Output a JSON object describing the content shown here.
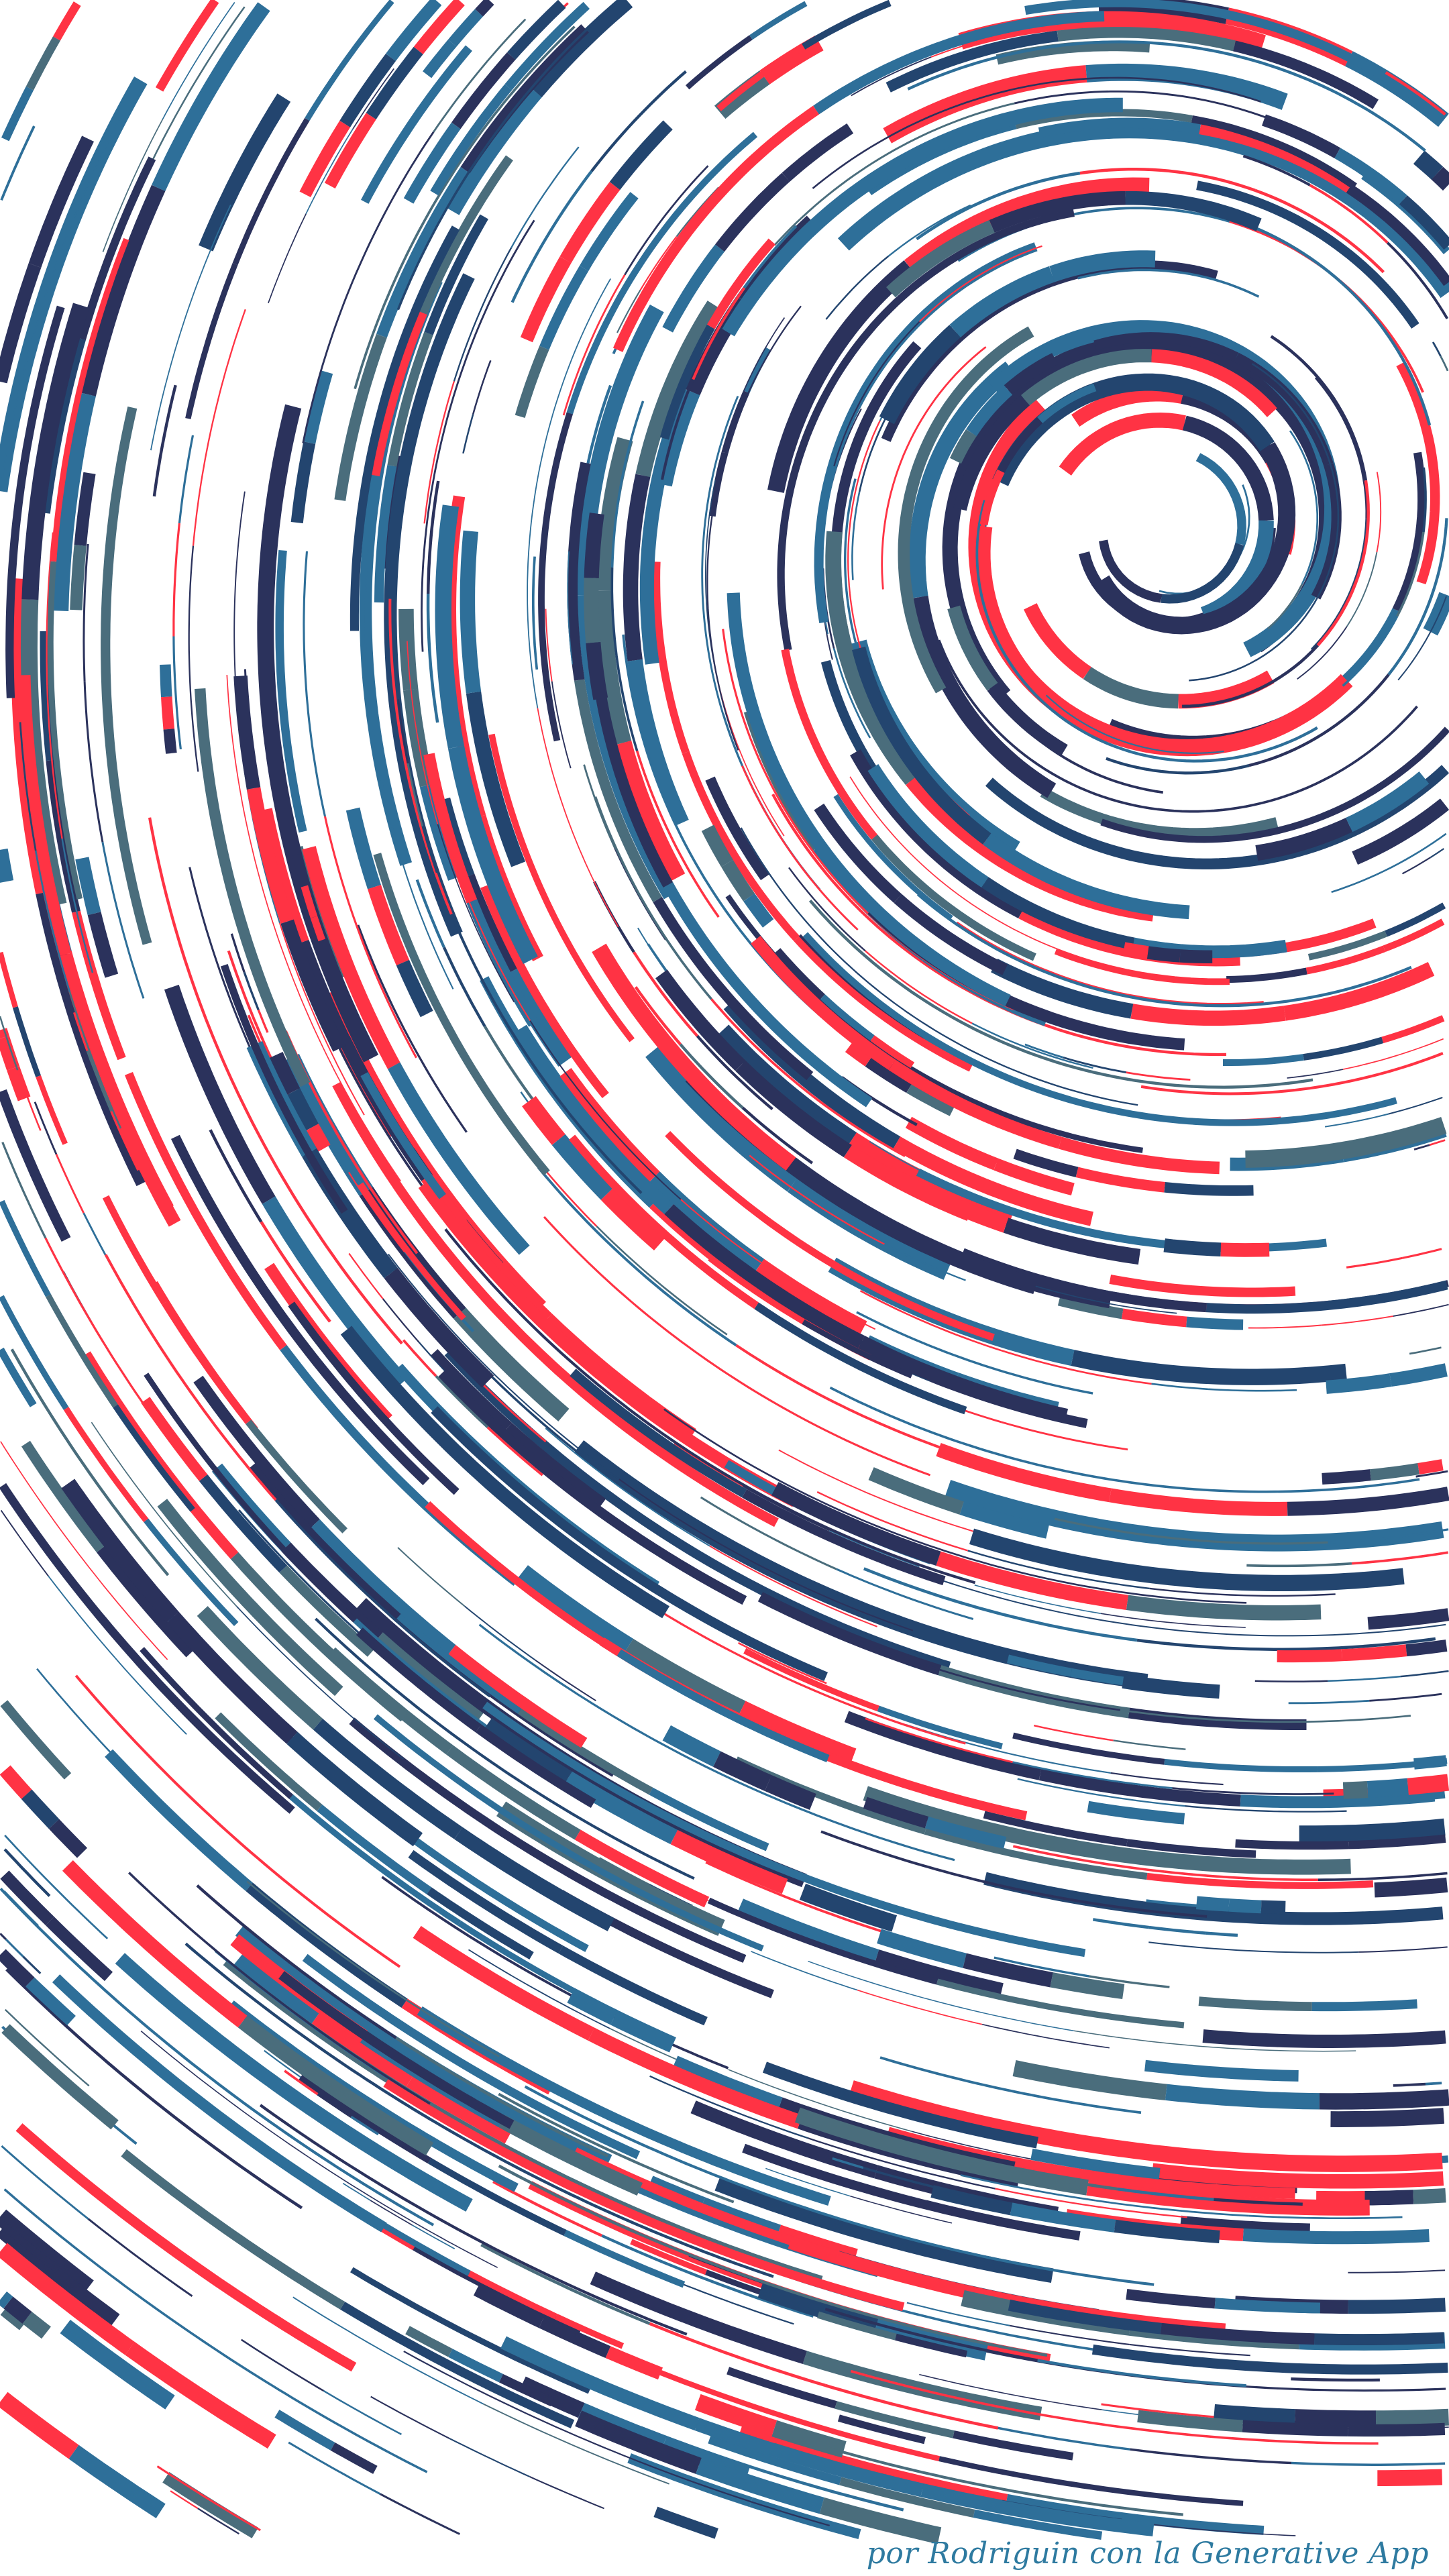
{
  "artwork": {
    "kind": "generative swirl of curved strokes",
    "background_color": "#ffffff",
    "palette": {
      "navy": "#2b325c",
      "blue": "#2e6f99",
      "slate": "#4a6d7c",
      "deep_blue": "#23456f",
      "red": "#ff3344"
    },
    "vortex_center_description": "upper right"
  },
  "signature": {
    "text": "por Rodriguin con la Generative App",
    "color": "#2e7aa0"
  }
}
